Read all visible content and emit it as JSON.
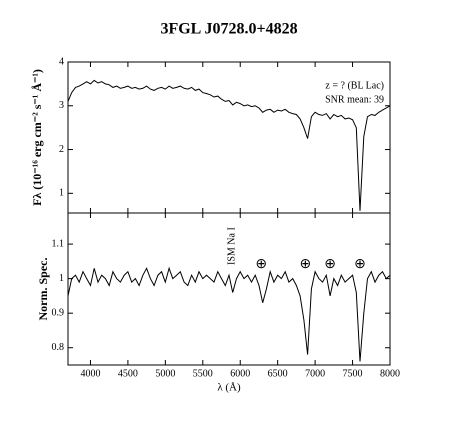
{
  "chart_data": [
    {
      "type": "line",
      "title": "3FGL J0728.0+4828",
      "ylabel": "Fλ (10⁻¹⁶ erg cm⁻² s⁻¹ Å⁻¹)",
      "color": "#000000",
      "annotations": [
        "z = ? (BL Lac)",
        "SNR mean: 39"
      ],
      "x": [
        3700,
        3750,
        3800,
        3850,
        3900,
        3950,
        4000,
        4050,
        4100,
        4150,
        4200,
        4250,
        4300,
        4350,
        4400,
        4450,
        4500,
        4550,
        4600,
        4650,
        4700,
        4750,
        4800,
        4850,
        4900,
        4950,
        5000,
        5050,
        5100,
        5150,
        5200,
        5250,
        5300,
        5350,
        5400,
        5450,
        5500,
        5550,
        5600,
        5650,
        5700,
        5750,
        5800,
        5850,
        5900,
        5950,
        6000,
        6050,
        6100,
        6150,
        6200,
        6250,
        6300,
        6350,
        6400,
        6450,
        6500,
        6550,
        6600,
        6650,
        6700,
        6750,
        6800,
        6850,
        6900,
        6950,
        7000,
        7050,
        7100,
        7150,
        7200,
        7250,
        7300,
        7350,
        7400,
        7450,
        7500,
        7550,
        7600,
        7650,
        7700,
        7750,
        7800,
        7850,
        7900,
        7950,
        8000
      ],
      "values": [
        3.1,
        3.3,
        3.42,
        3.45,
        3.5,
        3.55,
        3.5,
        3.58,
        3.52,
        3.55,
        3.5,
        3.48,
        3.42,
        3.45,
        3.4,
        3.42,
        3.45,
        3.4,
        3.42,
        3.38,
        3.4,
        3.45,
        3.38,
        3.35,
        3.4,
        3.42,
        3.38,
        3.45,
        3.4,
        3.42,
        3.45,
        3.4,
        3.38,
        3.42,
        3.35,
        3.38,
        3.3,
        3.28,
        3.25,
        3.2,
        3.22,
        3.15,
        3.1,
        3.12,
        3.02,
        3.08,
        3.05,
        3.0,
        3.02,
        2.98,
        3.0,
        2.95,
        2.85,
        2.9,
        2.92,
        2.85,
        2.9,
        2.88,
        2.92,
        2.85,
        2.82,
        2.8,
        2.7,
        2.5,
        2.25,
        2.75,
        2.85,
        2.8,
        2.78,
        2.82,
        2.7,
        2.8,
        2.75,
        2.78,
        2.7,
        2.72,
        2.68,
        2.5,
        0.6,
        2.3,
        2.75,
        2.8,
        2.78,
        2.85,
        2.9,
        2.95,
        3.0
      ],
      "xlim": [
        3700,
        8000
      ],
      "xticks": [
        4000,
        4500,
        5000,
        5500,
        6000,
        6500,
        7000,
        7500,
        8000
      ],
      "ylim": [
        0.55,
        4
      ],
      "yticks": [
        1,
        2,
        3,
        4
      ]
    },
    {
      "type": "line",
      "ylabel": "Norm. Spec.",
      "xlabel": "λ (Å)",
      "color": "#000000",
      "annotations": [
        {
          "text": "ISM Na I",
          "x": 5890
        },
        {
          "text": "⊕",
          "x": 6280
        },
        {
          "text": "⊕",
          "x": 6870
        },
        {
          "text": "⊕",
          "x": 7200
        },
        {
          "text": "⊕",
          "x": 7600
        }
      ],
      "x": [
        3700,
        3750,
        3800,
        3850,
        3900,
        3950,
        4000,
        4050,
        4100,
        4150,
        4200,
        4250,
        4300,
        4350,
        4400,
        4450,
        4500,
        4550,
        4600,
        4650,
        4700,
        4750,
        4800,
        4850,
        4900,
        4950,
        5000,
        5050,
        5100,
        5150,
        5200,
        5250,
        5300,
        5350,
        5400,
        5450,
        5500,
        5550,
        5600,
        5650,
        5700,
        5750,
        5800,
        5850,
        5900,
        5950,
        6000,
        6050,
        6100,
        6150,
        6200,
        6250,
        6300,
        6350,
        6400,
        6450,
        6500,
        6550,
        6600,
        6650,
        6700,
        6750,
        6800,
        6850,
        6900,
        6950,
        7000,
        7050,
        7100,
        7150,
        7200,
        7250,
        7300,
        7350,
        7400,
        7450,
        7500,
        7550,
        7600,
        7650,
        7700,
        7750,
        7800,
        7850,
        7900,
        7950,
        8000
      ],
      "values": [
        0.95,
        1.0,
        1.01,
        0.99,
        1.02,
        1.0,
        0.98,
        1.03,
        0.99,
        1.01,
        1.0,
        0.98,
        1.02,
        1.0,
        0.99,
        1.01,
        1.02,
        0.99,
        1.0,
        0.98,
        1.01,
        1.03,
        1.0,
        0.98,
        1.01,
        1.02,
        0.99,
        1.03,
        1.0,
        1.01,
        1.02,
        0.99,
        0.98,
        1.01,
        0.99,
        1.02,
        1.0,
        1.01,
        1.0,
        0.99,
        1.02,
        1.0,
        0.98,
        1.01,
        0.96,
        1.0,
        1.02,
        1.0,
        1.01,
        0.99,
        1.01,
        0.98,
        0.93,
        0.97,
        1.02,
        0.99,
        1.01,
        1.0,
        1.02,
        0.99,
        1.0,
        0.98,
        0.95,
        0.88,
        0.78,
        0.97,
        1.02,
        1.0,
        0.99,
        1.01,
        0.95,
        1.0,
        0.98,
        1.01,
        0.99,
        1.0,
        1.01,
        0.96,
        0.76,
        0.9,
        1.0,
        1.02,
        0.99,
        1.01,
        1.02,
        1.0,
        1.01
      ],
      "xlim": [
        3700,
        8000
      ],
      "xticks": [
        4000,
        4500,
        5000,
        5500,
        6000,
        6500,
        7000,
        7500,
        8000
      ],
      "ylim": [
        0.75,
        1.19
      ],
      "yticks": [
        0.8,
        0.9,
        1,
        1.1
      ]
    }
  ]
}
